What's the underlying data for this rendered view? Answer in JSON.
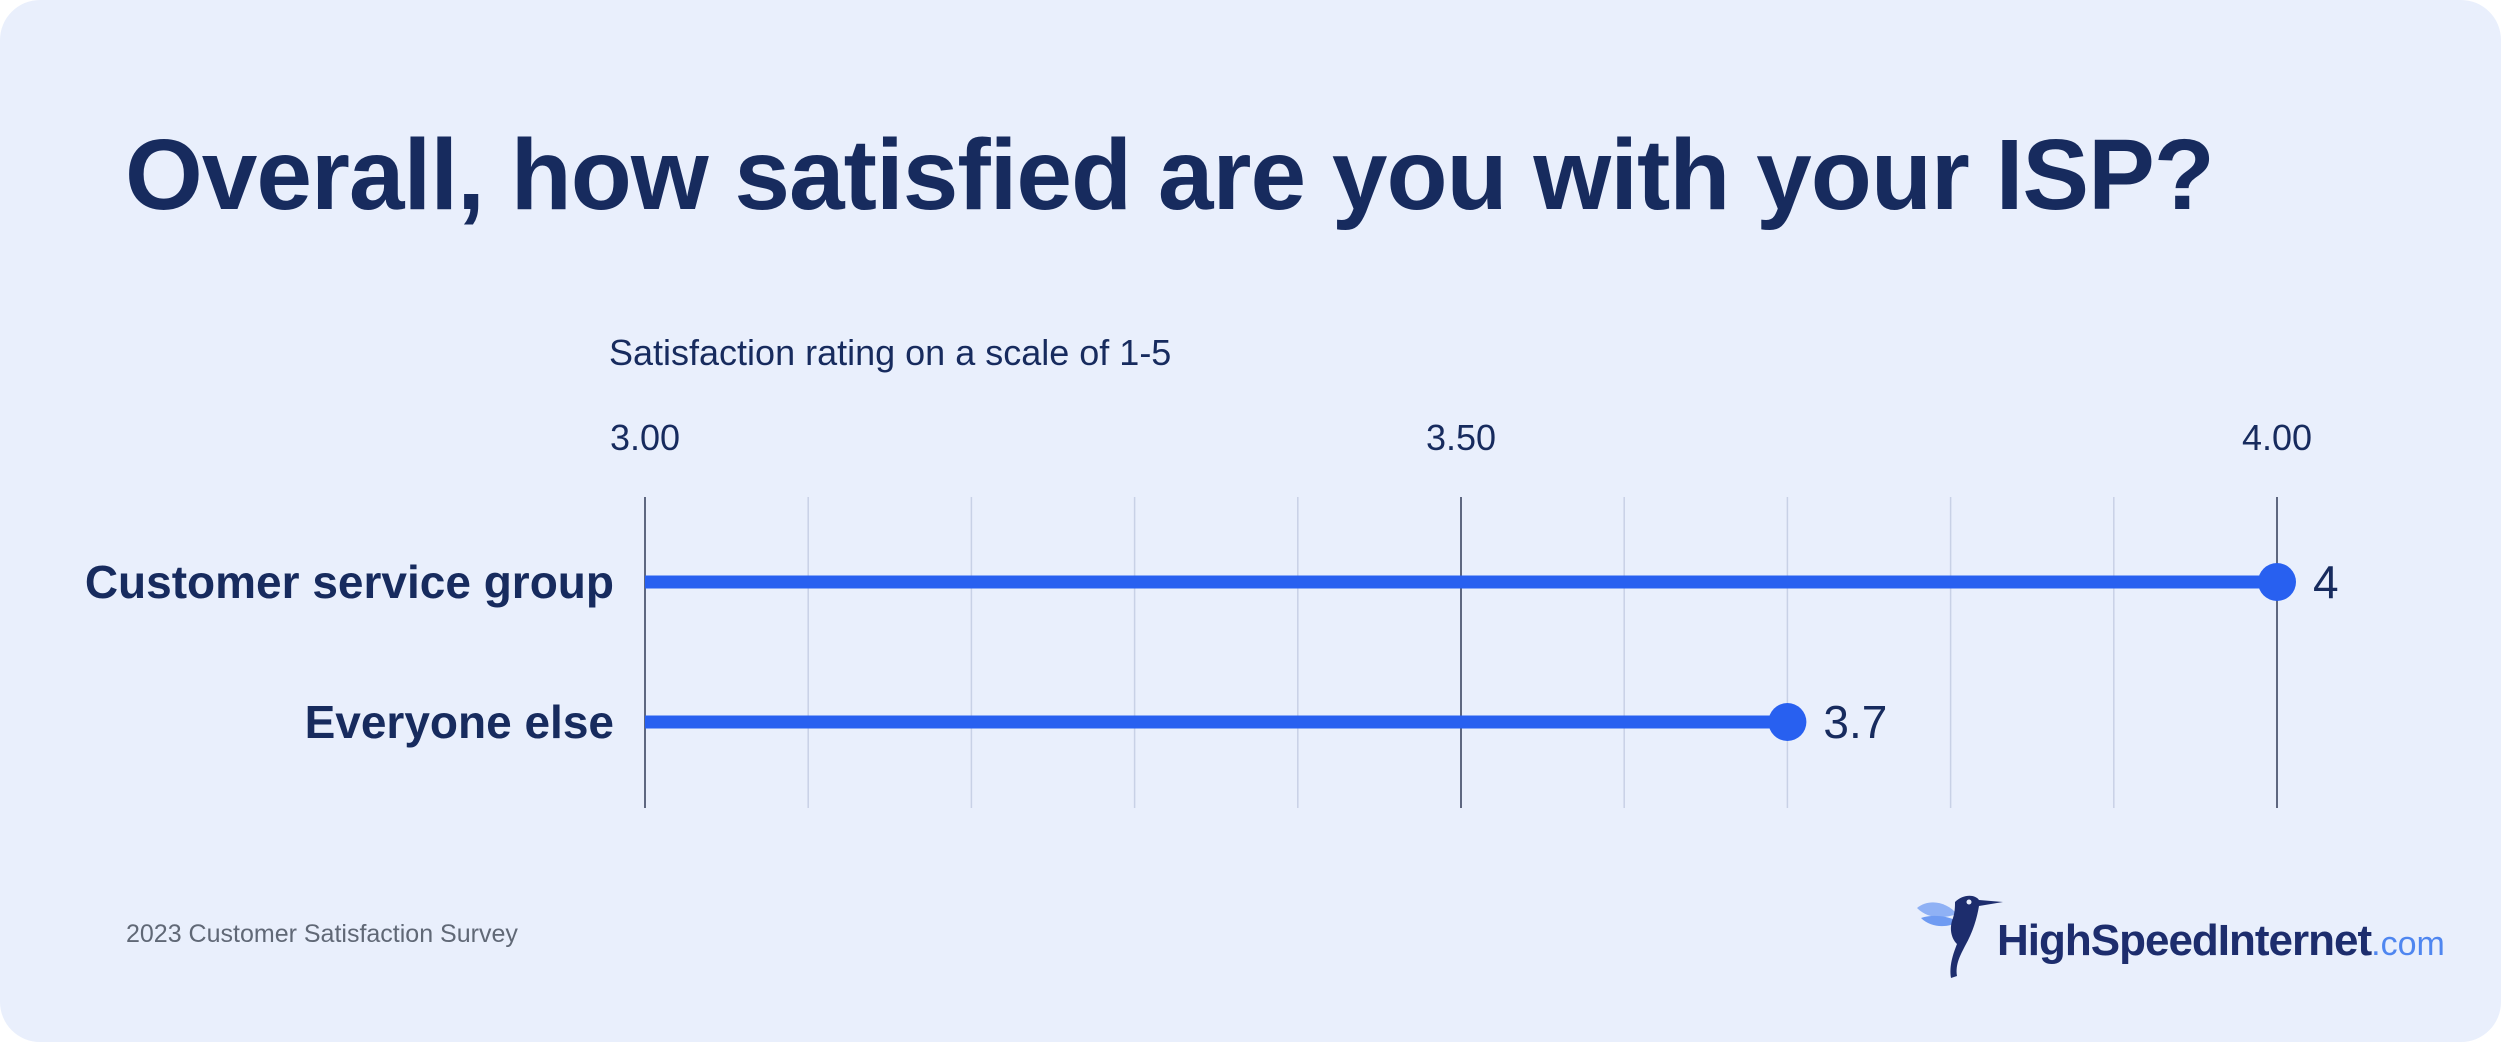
{
  "page": {
    "title": "Overall, how satisfied are you with your ISP?",
    "footer_source": "2023 Customer Satisfaction Survey"
  },
  "logo": {
    "main": "HighSpeedInternet",
    "suffix": ".com"
  },
  "colors": {
    "background": "#e9effc",
    "title": "#172b5e",
    "bar": "#2860f0",
    "grid_minor": "#c8d1e6",
    "grid_major": "#5e6780"
  },
  "chart_data": {
    "type": "lollipop",
    "title": "Overall, how satisfied are you with your ISP?",
    "xlabel": "Satisfaction rating on a scale of 1-5",
    "xlim": [
      3.0,
      4.0
    ],
    "major_ticks": [
      3.0,
      3.5,
      4.0
    ],
    "tick_labels": [
      "3.00",
      "3.50",
      "4.00"
    ],
    "minor_step": 0.1,
    "grid": true,
    "categories": [
      "Customer service group",
      "Everyone else"
    ],
    "values": [
      4.0,
      3.7
    ],
    "data_labels": [
      "4",
      "3.7"
    ]
  }
}
